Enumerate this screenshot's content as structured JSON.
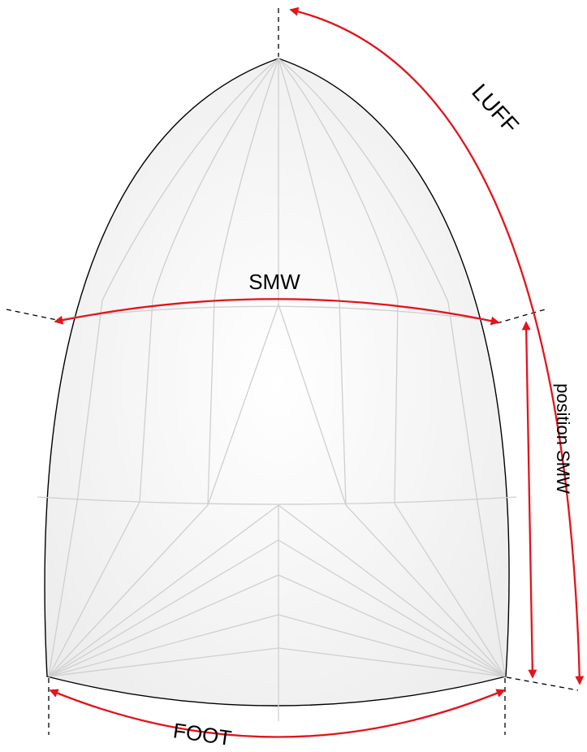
{
  "labels": {
    "luff": "LUFF",
    "smw": "SMW",
    "position_smw": "position SMW",
    "foot": "FOOT"
  },
  "colors": {
    "arrow": "#e3141b",
    "outline": "#000000",
    "seam": "#cfcfcf",
    "sail_fill": "#f4f4f4"
  }
}
